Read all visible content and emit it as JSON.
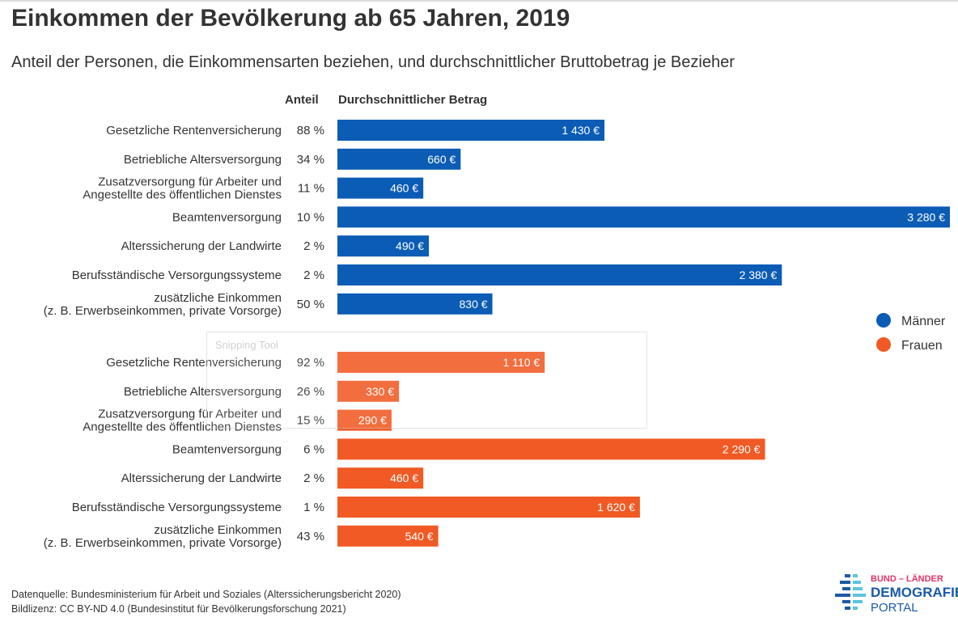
{
  "title": "Einkommen der Bevölkerung ab 65 Jahren, 2019",
  "subtitle": "Anteil der Personen, die Einkommensarten beziehen, und durchschnittlicher Bruttobetrag je Bezieher",
  "column_headers": {
    "share": "Anteil",
    "amount": "Durchschnittlicher Betrag"
  },
  "source": {
    "line1": "Datenquelle: Bundesministerium für Arbeit und Soziales (Alterssicherungsbericht 2020)",
    "line2": "Bildlizenz: CC BY-ND 4.0 (Bundesinstitut für Bevölkerungsforschung 2021)"
  },
  "overlay": {
    "label": "Snipping Tool"
  },
  "logo": {
    "line1": "BUND – LÄNDER",
    "line2": "DEMOGRAFIE",
    "line3": "PORTAL"
  },
  "chart_data": {
    "type": "bar",
    "orientation": "horizontal",
    "unit": "€",
    "legend": {
      "placement": "right",
      "entries": [
        "Männer",
        "Frauen"
      ]
    },
    "colors": {
      "Männer": "#0b5cb5",
      "Frauen": "#f15a24"
    },
    "categories": [
      [
        "Gesetzliche Rentenversicherung"
      ],
      [
        "Betriebliche Altersversorgung"
      ],
      [
        "Zusatzversorgung für Arbeiter und",
        "Angestellte des öffentlichen Dienstes"
      ],
      [
        "Beamtenversorgung"
      ],
      [
        "Alterssicherung der Landwirte"
      ],
      [
        "Berufsständische Versorgungssysteme"
      ],
      [
        "zusätzliche Einkommen",
        "(z. B. Erwerbseinkommen, private Vorsorge)"
      ]
    ],
    "series": [
      {
        "name": "Männer",
        "share": [
          "88 %",
          "34 %",
          "11 %",
          "10 %",
          "2 %",
          "2 %",
          "50 %"
        ],
        "values": [
          1430,
          660,
          460,
          3280,
          490,
          2380,
          830
        ],
        "labels": [
          "1 430 €",
          "660 €",
          "460 €",
          "3 280 €",
          "490 €",
          "2 380 €",
          "830 €"
        ]
      },
      {
        "name": "Frauen",
        "share": [
          "92 %",
          "26 %",
          "15 %",
          "6 %",
          "2 %",
          "1 %",
          "43 %"
        ],
        "values": [
          1110,
          330,
          290,
          2290,
          460,
          1620,
          540
        ],
        "labels": [
          "1 110 €",
          "330 €",
          "290 €",
          "2 290 €",
          "460 €",
          "1 620 €",
          "540 €"
        ]
      }
    ],
    "xlim": [
      0,
      3280
    ],
    "grid": false
  }
}
